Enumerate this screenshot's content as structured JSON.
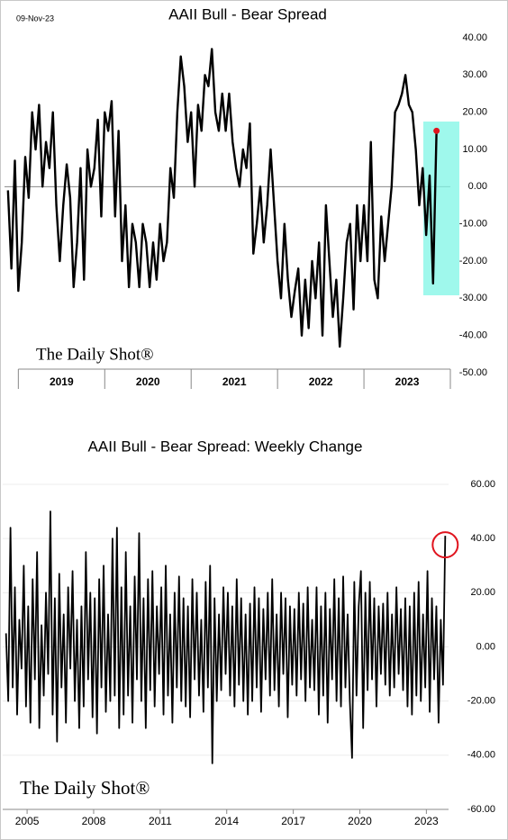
{
  "chart_data": [
    {
      "type": "line",
      "title": "AAII Bull - Bear Spread",
      "date": "09-Nov-23",
      "watermark": "The Daily Shot®",
      "color": "#000000",
      "marker_color": "#e0141e",
      "highlight_color": "#7ff5e6",
      "x": [
        2018.88,
        2018.92,
        2018.96,
        2019.0,
        2019.04,
        2019.08,
        2019.12,
        2019.16,
        2019.2,
        2019.24,
        2019.28,
        2019.32,
        2019.36,
        2019.4,
        2019.44,
        2019.48,
        2019.52,
        2019.56,
        2019.6,
        2019.64,
        2019.68,
        2019.72,
        2019.76,
        2019.8,
        2019.84,
        2019.88,
        2019.92,
        2019.96,
        2020.0,
        2020.04,
        2020.08,
        2020.12,
        2020.16,
        2020.2,
        2020.24,
        2020.28,
        2020.32,
        2020.36,
        2020.4,
        2020.44,
        2020.48,
        2020.52,
        2020.56,
        2020.6,
        2020.64,
        2020.68,
        2020.72,
        2020.76,
        2020.8,
        2020.84,
        2020.88,
        2020.92,
        2020.96,
        2021.0,
        2021.04,
        2021.08,
        2021.12,
        2021.16,
        2021.2,
        2021.24,
        2021.28,
        2021.32,
        2021.36,
        2021.4,
        2021.44,
        2021.48,
        2021.52,
        2021.56,
        2021.6,
        2021.64,
        2021.68,
        2021.72,
        2021.76,
        2021.8,
        2021.84,
        2021.88,
        2021.92,
        2021.96,
        2022.0,
        2022.04,
        2022.08,
        2022.12,
        2022.16,
        2022.2,
        2022.24,
        2022.28,
        2022.32,
        2022.36,
        2022.4,
        2022.44,
        2022.48,
        2022.52,
        2022.56,
        2022.6,
        2022.64,
        2022.68,
        2022.72,
        2022.76,
        2022.8,
        2022.84,
        2022.88,
        2022.92,
        2022.96,
        2023.0,
        2023.04,
        2023.08,
        2023.12,
        2023.16,
        2023.2,
        2023.24,
        2023.28,
        2023.32,
        2023.36,
        2023.4,
        2023.44,
        2023.48,
        2023.52,
        2023.56,
        2023.6,
        2023.64,
        2023.68,
        2023.72,
        2023.76,
        2023.8,
        2023.84
      ],
      "values": [
        -1,
        -22,
        7,
        -28,
        -15,
        8,
        -3,
        20,
        10,
        22,
        0,
        12,
        5,
        20,
        -5,
        -20,
        -5,
        6,
        -3,
        -27,
        -15,
        5,
        -25,
        10,
        0,
        5,
        18,
        -8,
        20,
        15,
        23,
        -8,
        15,
        -20,
        -5,
        -27,
        -10,
        -15,
        -27,
        -10,
        -15,
        -27,
        -15,
        -25,
        -10,
        -20,
        -15,
        5,
        -3,
        20,
        35,
        27,
        12,
        20,
        0,
        22,
        15,
        30,
        27,
        37,
        20,
        15,
        25,
        15,
        25,
        12,
        5,
        0,
        10,
        5,
        17,
        -18,
        -10,
        0,
        -15,
        -5,
        10,
        -5,
        -20,
        -30,
        -10,
        -25,
        -35,
        -28,
        -22,
        -40,
        -25,
        -38,
        -20,
        -30,
        -15,
        -40,
        -5,
        -20,
        -35,
        -25,
        -43,
        -30,
        -15,
        -10,
        -33,
        -5,
        -20,
        -5,
        -20,
        12,
        -25,
        -30,
        -8,
        -20,
        -10,
        0,
        20,
        22,
        25,
        30,
        22,
        20,
        10,
        -5,
        5,
        -13,
        3,
        -26,
        15
      ],
      "xlim": [
        2018.84,
        2024
      ],
      "xticks": [
        {
          "value": 2019.5,
          "label": "2019"
        },
        {
          "value": 2020.5,
          "label": "2020"
        },
        {
          "value": 2021.5,
          "label": "2021"
        },
        {
          "value": 2022.5,
          "label": "2022"
        },
        {
          "value": 2023.5,
          "label": "2023"
        }
      ],
      "ylim": [
        -50,
        40
      ],
      "yticks": [
        {
          "value": 40,
          "label": "40.00"
        },
        {
          "value": 30,
          "label": "30.00"
        },
        {
          "value": 20,
          "label": "20.00"
        },
        {
          "value": 10,
          "label": "10.00"
        },
        {
          "value": 0,
          "label": "0.00"
        },
        {
          "value": -10,
          "label": "-10.00"
        },
        {
          "value": -20,
          "label": "-20.00"
        },
        {
          "value": -30,
          "label": "-30.00"
        },
        {
          "value": -40,
          "label": "-40.00"
        },
        {
          "value": -50,
          "label": "-50.00"
        }
      ],
      "grid": false
    },
    {
      "type": "line",
      "title": "AAII Bull - Bear Spread: Weekly Change",
      "watermark": "The Daily Shot®",
      "color": "#000000",
      "marker_color": "#e0141e",
      "x": [
        2004.05,
        2004.15,
        2004.25,
        2004.35,
        2004.45,
        2004.55,
        2004.65,
        2004.75,
        2004.85,
        2004.95,
        2005.05,
        2005.15,
        2005.25,
        2005.35,
        2005.45,
        2005.55,
        2005.65,
        2005.75,
        2005.85,
        2005.95,
        2006.05,
        2006.15,
        2006.25,
        2006.35,
        2006.45,
        2006.55,
        2006.65,
        2006.75,
        2006.85,
        2006.95,
        2007.05,
        2007.15,
        2007.25,
        2007.35,
        2007.45,
        2007.55,
        2007.65,
        2007.75,
        2007.85,
        2007.95,
        2008.05,
        2008.15,
        2008.25,
        2008.35,
        2008.45,
        2008.55,
        2008.65,
        2008.75,
        2008.85,
        2008.95,
        2009.05,
        2009.15,
        2009.25,
        2009.35,
        2009.45,
        2009.55,
        2009.65,
        2009.75,
        2009.85,
        2009.95,
        2010.05,
        2010.15,
        2010.25,
        2010.35,
        2010.45,
        2010.55,
        2010.65,
        2010.75,
        2010.85,
        2010.95,
        2011.05,
        2011.15,
        2011.25,
        2011.35,
        2011.45,
        2011.55,
        2011.65,
        2011.75,
        2011.85,
        2011.95,
        2012.05,
        2012.15,
        2012.25,
        2012.35,
        2012.45,
        2012.55,
        2012.65,
        2012.75,
        2012.85,
        2012.95,
        2013.05,
        2013.15,
        2013.25,
        2013.35,
        2013.45,
        2013.55,
        2013.65,
        2013.75,
        2013.85,
        2013.95,
        2014.05,
        2014.15,
        2014.25,
        2014.35,
        2014.45,
        2014.55,
        2014.65,
        2014.75,
        2014.85,
        2014.95,
        2015.05,
        2015.15,
        2015.25,
        2015.35,
        2015.45,
        2015.55,
        2015.65,
        2015.75,
        2015.85,
        2015.95,
        2016.05,
        2016.15,
        2016.25,
        2016.35,
        2016.45,
        2016.55,
        2016.65,
        2016.75,
        2016.85,
        2016.95,
        2017.05,
        2017.15,
        2017.25,
        2017.35,
        2017.45,
        2017.55,
        2017.65,
        2017.75,
        2017.85,
        2017.95,
        2018.05,
        2018.15,
        2018.25,
        2018.35,
        2018.45,
        2018.55,
        2018.65,
        2018.75,
        2018.85,
        2018.95,
        2019.05,
        2019.15,
        2019.25,
        2019.35,
        2019.45,
        2019.55,
        2019.65,
        2019.75,
        2019.85,
        2019.95,
        2020.05,
        2020.15,
        2020.25,
        2020.35,
        2020.45,
        2020.55,
        2020.65,
        2020.75,
        2020.85,
        2020.95,
        2021.05,
        2021.15,
        2021.25,
        2021.35,
        2021.45,
        2021.55,
        2021.65,
        2021.75,
        2021.85,
        2021.95,
        2022.05,
        2022.15,
        2022.25,
        2022.35,
        2022.45,
        2022.55,
        2022.65,
        2022.75,
        2022.85,
        2022.95,
        2023.05,
        2023.15,
        2023.25,
        2023.35,
        2023.45,
        2023.55,
        2023.65,
        2023.75,
        2023.85
      ],
      "values": [
        5,
        -20,
        44,
        -15,
        22,
        -25,
        10,
        -8,
        30,
        -22,
        15,
        -28,
        25,
        -12,
        35,
        -30,
        8,
        -18,
        20,
        -10,
        50,
        -25,
        18,
        -35,
        27,
        -15,
        12,
        -28,
        22,
        -8,
        28,
        -20,
        10,
        -30,
        15,
        -22,
        35,
        -12,
        20,
        -26,
        18,
        -32,
        25,
        -15,
        30,
        -24,
        12,
        -20,
        40,
        -18,
        44,
        -30,
        22,
        -25,
        35,
        -18,
        15,
        -28,
        26,
        -12,
        42,
        -20,
        18,
        -30,
        25,
        -16,
        28,
        -22,
        15,
        -10,
        22,
        -25,
        30,
        -18,
        12,
        -28,
        20,
        -15,
        26,
        -20,
        18,
        -22,
        15,
        -26,
        25,
        -12,
        20,
        -18,
        10,
        -24,
        24,
        -15,
        30,
        -43,
        18,
        -20,
        12,
        -16,
        22,
        -10,
        20,
        -18,
        15,
        -22,
        25,
        -14,
        18,
        -20,
        12,
        -25,
        16,
        -20,
        22,
        -15,
        18,
        -24,
        14,
        -12,
        20,
        -18,
        25,
        -16,
        12,
        -22,
        20,
        -10,
        18,
        -26,
        15,
        -14,
        14,
        -18,
        20,
        -12,
        16,
        -20,
        22,
        -15,
        10,
        -16,
        22,
        -25,
        15,
        -18,
        20,
        -28,
        14,
        -12,
        25,
        -20,
        18,
        -22,
        26,
        -15,
        12,
        -20,
        -41,
        24,
        -18,
        15,
        28,
        -30,
        20,
        -16,
        24,
        -12,
        18,
        -22,
        15,
        -10,
        16,
        -14,
        20,
        -18,
        12,
        -15,
        22,
        -10,
        14,
        -16,
        18,
        -22,
        15,
        -25,
        20,
        -18,
        24,
        -20,
        12,
        -15,
        28,
        -24,
        18,
        -12,
        15,
        -28,
        10,
        -14,
        41
      ],
      "xlim": [
        2003.9,
        2024
      ],
      "xticks": [
        2005,
        2008,
        2011,
        2014,
        2017,
        2020,
        2023
      ],
      "ylim": [
        -60,
        60
      ],
      "yticks": [
        {
          "value": 60,
          "label": "60.00"
        },
        {
          "value": 40,
          "label": "40.00"
        },
        {
          "value": 20,
          "label": "20.00"
        },
        {
          "value": 0,
          "label": "0.00"
        },
        {
          "value": -20,
          "label": "-20.00"
        },
        {
          "value": -40,
          "label": "-40.00"
        },
        {
          "value": -60,
          "label": "-60.00"
        }
      ],
      "grid": true
    }
  ]
}
